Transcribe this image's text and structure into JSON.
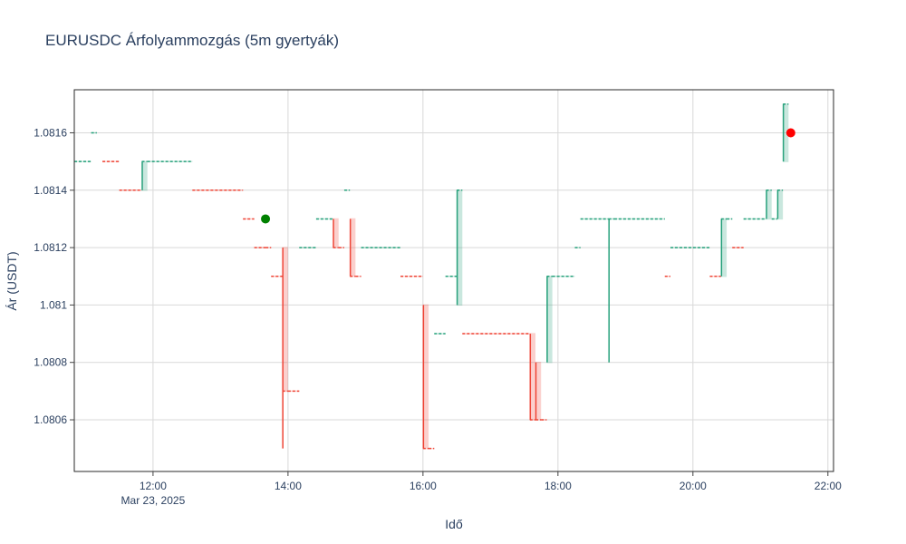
{
  "chart_data": {
    "type": "candlestick",
    "title": "EURUSDC Árfolyammozgás (5m gyertyák)",
    "xlabel": "Idő",
    "ylabel": "Ár (USDT)",
    "x_range": [
      "2025-03-23 10:50",
      "2025-03-23 22:05"
    ],
    "ylim": [
      1.08042,
      1.08175
    ],
    "x_ticks": [
      {
        "time": "2025-03-23 12:00",
        "label": "12:00",
        "sublabel": "Mar 23, 2025"
      },
      {
        "time": "2025-03-23 14:00",
        "label": "14:00"
      },
      {
        "time": "2025-03-23 16:00",
        "label": "16:00"
      },
      {
        "time": "2025-03-23 18:00",
        "label": "18:00"
      },
      {
        "time": "2025-03-23 20:00",
        "label": "20:00"
      },
      {
        "time": "2025-03-23 22:00",
        "label": "22:00"
      }
    ],
    "y_ticks": [
      {
        "value": 1.0806,
        "label": "1.0806"
      },
      {
        "value": 1.0808,
        "label": "1.0808"
      },
      {
        "value": 1.081,
        "label": "1.081"
      },
      {
        "value": 1.0812,
        "label": "1.0812"
      },
      {
        "value": 1.0814,
        "label": "1.0814"
      },
      {
        "value": 1.0816,
        "label": "1.0816"
      }
    ],
    "grid": true,
    "colors": {
      "up": "#26a17b",
      "down": "#ef4536",
      "buy_marker": "#008000",
      "sell_marker": "#ff0000",
      "grid": "#d9d9d9",
      "text": "#2a3f5f"
    },
    "candles": [
      {
        "start": "10:50",
        "end": "11:05",
        "open": 1.0815,
        "high": 1.0815,
        "low": 1.0815,
        "close": 1.0815,
        "dir": "up"
      },
      {
        "start": "11:05",
        "end": "11:10",
        "open": 1.0816,
        "high": 1.0816,
        "low": 1.0816,
        "close": 1.0816,
        "dir": "up"
      },
      {
        "start": "11:15",
        "end": "11:30",
        "open": 1.0815,
        "high": 1.0815,
        "low": 1.0815,
        "close": 1.0815,
        "dir": "down"
      },
      {
        "start": "11:30",
        "end": "11:50",
        "open": 1.0814,
        "high": 1.0814,
        "low": 1.0814,
        "close": 1.0814,
        "dir": "down"
      },
      {
        "start": "11:50",
        "end": "11:55",
        "open": 1.0814,
        "high": 1.0815,
        "low": 1.0814,
        "close": 1.0815,
        "dir": "up"
      },
      {
        "start": "11:55",
        "end": "12:35",
        "open": 1.0815,
        "high": 1.0815,
        "low": 1.0815,
        "close": 1.0815,
        "dir": "up"
      },
      {
        "start": "12:35",
        "end": "13:20",
        "open": 1.0814,
        "high": 1.0814,
        "low": 1.0814,
        "close": 1.0814,
        "dir": "down"
      },
      {
        "start": "13:20",
        "end": "13:30",
        "open": 1.0813,
        "high": 1.0813,
        "low": 1.0813,
        "close": 1.0813,
        "dir": "down"
      },
      {
        "start": "13:30",
        "end": "13:40",
        "open": 1.0812,
        "high": 1.0812,
        "low": 1.0812,
        "close": 1.0812,
        "dir": "down"
      },
      {
        "start": "13:40",
        "end": "13:45",
        "open": 1.0812,
        "high": 1.0812,
        "low": 1.0812,
        "close": 1.0812,
        "dir": "down"
      },
      {
        "start": "13:45",
        "end": "13:55",
        "open": 1.0811,
        "high": 1.0811,
        "low": 1.0811,
        "close": 1.0811,
        "dir": "down"
      },
      {
        "start": "13:55",
        "end": "14:00",
        "open": 1.0812,
        "high": 1.0812,
        "low": 1.0805,
        "close": 1.0807,
        "dir": "down"
      },
      {
        "start": "14:00",
        "end": "14:10",
        "open": 1.0807,
        "high": 1.0807,
        "low": 1.0807,
        "close": 1.0807,
        "dir": "down"
      },
      {
        "start": "14:10",
        "end": "14:25",
        "open": 1.0812,
        "high": 1.0812,
        "low": 1.0812,
        "close": 1.0812,
        "dir": "up"
      },
      {
        "start": "14:25",
        "end": "14:40",
        "open": 1.0813,
        "high": 1.0813,
        "low": 1.0813,
        "close": 1.0813,
        "dir": "up"
      },
      {
        "start": "14:40",
        "end": "14:45",
        "open": 1.0813,
        "high": 1.0813,
        "low": 1.0812,
        "close": 1.0812,
        "dir": "down"
      },
      {
        "start": "14:45",
        "end": "14:50",
        "open": 1.0812,
        "high": 1.0812,
        "low": 1.0812,
        "close": 1.0812,
        "dir": "down"
      },
      {
        "start": "14:50",
        "end": "14:55",
        "open": 1.0814,
        "high": 1.0814,
        "low": 1.0814,
        "close": 1.0814,
        "dir": "up"
      },
      {
        "start": "14:55",
        "end": "15:00",
        "open": 1.0813,
        "high": 1.0813,
        "low": 1.0811,
        "close": 1.0811,
        "dir": "down"
      },
      {
        "start": "15:00",
        "end": "15:05",
        "open": 1.0811,
        "high": 1.0811,
        "low": 1.0811,
        "close": 1.0811,
        "dir": "down"
      },
      {
        "start": "15:05",
        "end": "15:40",
        "open": 1.0812,
        "high": 1.0812,
        "low": 1.0812,
        "close": 1.0812,
        "dir": "up"
      },
      {
        "start": "15:40",
        "end": "16:00",
        "open": 1.0811,
        "high": 1.0811,
        "low": 1.0811,
        "close": 1.0811,
        "dir": "down"
      },
      {
        "start": "16:00",
        "end": "16:05",
        "open": 1.081,
        "high": 1.081,
        "low": 1.0805,
        "close": 1.0805,
        "dir": "down"
      },
      {
        "start": "16:05",
        "end": "16:10",
        "open": 1.0805,
        "high": 1.0805,
        "low": 1.0805,
        "close": 1.0805,
        "dir": "down"
      },
      {
        "start": "16:10",
        "end": "16:20",
        "open": 1.0809,
        "high": 1.0809,
        "low": 1.0809,
        "close": 1.0809,
        "dir": "up"
      },
      {
        "start": "16:20",
        "end": "16:30",
        "open": 1.0811,
        "high": 1.0811,
        "low": 1.0811,
        "close": 1.0811,
        "dir": "up"
      },
      {
        "start": "16:30",
        "end": "16:35",
        "open": 1.081,
        "high": 1.0814,
        "low": 1.081,
        "close": 1.0814,
        "dir": "up"
      },
      {
        "start": "16:35",
        "end": "17:35",
        "open": 1.0809,
        "high": 1.0809,
        "low": 1.0809,
        "close": 1.0809,
        "dir": "down"
      },
      {
        "start": "17:35",
        "end": "17:40",
        "open": 1.0809,
        "high": 1.0809,
        "low": 1.0806,
        "close": 1.0806,
        "dir": "down"
      },
      {
        "start": "17:40",
        "end": "17:45",
        "open": 1.0808,
        "high": 1.0808,
        "low": 1.0806,
        "close": 1.0806,
        "dir": "down"
      },
      {
        "start": "17:45",
        "end": "17:50",
        "open": 1.0806,
        "high": 1.0806,
        "low": 1.0806,
        "close": 1.0806,
        "dir": "down"
      },
      {
        "start": "17:50",
        "end": "17:55",
        "open": 1.0808,
        "high": 1.0811,
        "low": 1.0808,
        "close": 1.0811,
        "dir": "up"
      },
      {
        "start": "17:55",
        "end": "18:15",
        "open": 1.0811,
        "high": 1.0811,
        "low": 1.0811,
        "close": 1.0811,
        "dir": "up"
      },
      {
        "start": "18:15",
        "end": "18:20",
        "open": 1.0812,
        "high": 1.0812,
        "low": 1.0812,
        "close": 1.0812,
        "dir": "up"
      },
      {
        "start": "18:20",
        "end": "18:45",
        "open": 1.0813,
        "high": 1.0813,
        "low": 1.0813,
        "close": 1.0813,
        "dir": "up"
      },
      {
        "start": "18:45",
        "end": "18:50",
        "open": 1.0813,
        "high": 1.0813,
        "low": 1.0808,
        "close": 1.0813,
        "dir": "up"
      },
      {
        "start": "18:50",
        "end": "19:35",
        "open": 1.0813,
        "high": 1.0813,
        "low": 1.0813,
        "close": 1.0813,
        "dir": "up"
      },
      {
        "start": "19:35",
        "end": "19:40",
        "open": 1.0811,
        "high": 1.0811,
        "low": 1.0811,
        "close": 1.0811,
        "dir": "down"
      },
      {
        "start": "19:40",
        "end": "20:15",
        "open": 1.0812,
        "high": 1.0812,
        "low": 1.0812,
        "close": 1.0812,
        "dir": "up"
      },
      {
        "start": "20:15",
        "end": "20:25",
        "open": 1.0811,
        "high": 1.0811,
        "low": 1.0811,
        "close": 1.0811,
        "dir": "down"
      },
      {
        "start": "20:25",
        "end": "20:30",
        "open": 1.0811,
        "high": 1.0813,
        "low": 1.0811,
        "close": 1.0813,
        "dir": "up"
      },
      {
        "start": "20:30",
        "end": "20:35",
        "open": 1.0813,
        "high": 1.0813,
        "low": 1.0813,
        "close": 1.0813,
        "dir": "up"
      },
      {
        "start": "20:35",
        "end": "20:45",
        "open": 1.0812,
        "high": 1.0812,
        "low": 1.0812,
        "close": 1.0812,
        "dir": "down"
      },
      {
        "start": "20:45",
        "end": "21:05",
        "open": 1.0813,
        "high": 1.0813,
        "low": 1.0813,
        "close": 1.0813,
        "dir": "up"
      },
      {
        "start": "21:05",
        "end": "21:10",
        "open": 1.0813,
        "high": 1.0814,
        "low": 1.0813,
        "close": 1.0814,
        "dir": "up"
      },
      {
        "start": "21:10",
        "end": "21:15",
        "open": 1.0813,
        "high": 1.0813,
        "low": 1.0813,
        "close": 1.0813,
        "dir": "up"
      },
      {
        "start": "21:15",
        "end": "21:20",
        "open": 1.0813,
        "high": 1.0814,
        "low": 1.0813,
        "close": 1.0814,
        "dir": "up"
      },
      {
        "start": "21:20",
        "end": "21:25",
        "open": 1.0815,
        "high": 1.0817,
        "low": 1.0815,
        "close": 1.0817,
        "dir": "up"
      }
    ],
    "markers": [
      {
        "type": "buy",
        "time": "13:40",
        "price": 1.0813,
        "color": "#008000"
      },
      {
        "type": "sell",
        "time": "21:27",
        "price": 1.0816,
        "color": "#ff0000"
      }
    ]
  }
}
